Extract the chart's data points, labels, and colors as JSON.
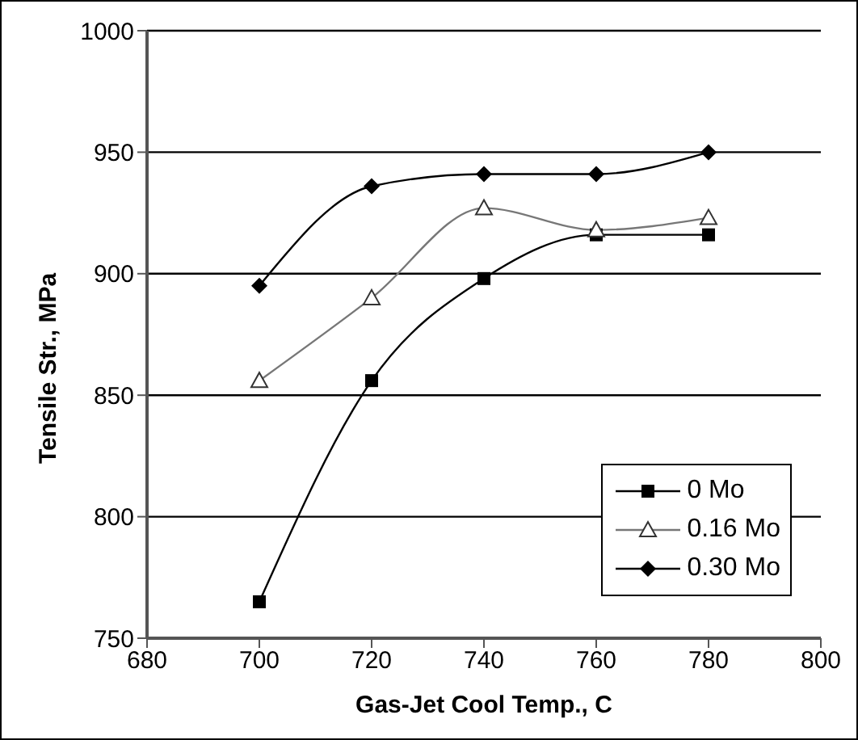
{
  "chart_data": {
    "type": "line",
    "xlabel": "Gas-Jet Cool Temp., C",
    "ylabel": "Tensile Str., MPa",
    "x": [
      700,
      720,
      740,
      760,
      780
    ],
    "series": [
      {
        "name": "0 Mo",
        "color": "#000000",
        "marker": "square",
        "values": [
          765,
          856,
          898,
          916,
          916
        ]
      },
      {
        "name": "0.16 Mo",
        "color": "#777777",
        "marker": "triangle",
        "values": [
          856,
          890,
          927,
          918,
          923
        ]
      },
      {
        "name": "0.30 Mo",
        "color": "#000000",
        "marker": "diamond",
        "values": [
          895,
          936,
          941,
          941,
          950
        ]
      }
    ],
    "xlim": [
      680,
      800
    ],
    "xticks": [
      680,
      700,
      720,
      740,
      760,
      780,
      800
    ],
    "ylim": [
      750,
      1000
    ],
    "yticks": [
      750,
      800,
      850,
      900,
      950,
      1000
    ],
    "grid": "y",
    "legend": "bottom right",
    "line_style": "solid"
  }
}
